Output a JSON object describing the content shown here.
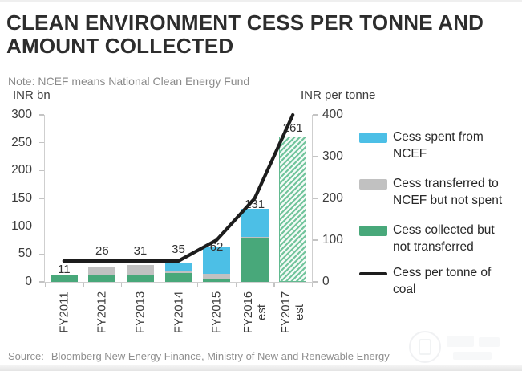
{
  "header": {
    "title": "CLEAN ENVIRONMENT CESS PER TONNE AND\nAMOUNT COLLECTED",
    "note": "Note: NCEF means National Clean Energy Fund"
  },
  "axes": {
    "left_caption": "INR bn",
    "right_caption": "INR per tonne"
  },
  "source": {
    "prefix": "Source:",
    "text": "Bloomberg New Energy Finance, Ministry of New and Renewable Energy"
  },
  "colors": {
    "spent_blue": "#4cbfe6",
    "transferred_gray": "#c1c1c1",
    "collected_green": "#48a87a",
    "hatch_green": "#72c49c",
    "line_black": "#1d1d1d",
    "axis_gray": "#cfcfcf"
  },
  "chart_data": {
    "type": "bar",
    "subtype": "stacked-bars-with-line-overlay",
    "title": "Clean environment cess per tonne and amount collected",
    "categories": [
      "FY2011",
      "FY2012",
      "FY2013",
      "FY2014",
      "FY2015",
      "FY2016 est",
      "FY2017 est"
    ],
    "bar_unit": "INR bn",
    "series": [
      {
        "name": "Cess collected but not transferred",
        "color_key": "collected_green",
        "hatched": false,
        "values": [
          11,
          13,
          13,
          16,
          4,
          78,
          0
        ]
      },
      {
        "name": "Cess transferred to NCEF but not spent",
        "color_key": "transferred_gray",
        "hatched": false,
        "values": [
          0,
          13,
          18,
          4,
          10,
          3,
          0
        ]
      },
      {
        "name": "Cess spent from NCEF",
        "color_key": "spent_blue",
        "hatched": false,
        "values": [
          0,
          0,
          0,
          15,
          48,
          50,
          0
        ]
      },
      {
        "name": "Total cess collected (estimate, hatched)",
        "color_key": "hatch_green",
        "hatched": true,
        "values": [
          0,
          0,
          0,
          0,
          0,
          0,
          261
        ]
      }
    ],
    "totals": [
      11,
      26,
      31,
      35,
      62,
      131,
      261
    ],
    "line_series": {
      "name": "Cess per tonne of coal",
      "axis": "right",
      "unit": "INR per tonne",
      "values": [
        50,
        50,
        50,
        50,
        100,
        200,
        400
      ]
    },
    "left_axis": {
      "label": "INR bn",
      "ticks": [
        0,
        50,
        100,
        150,
        200,
        250,
        300
      ],
      "max": 300
    },
    "right_axis": {
      "label": "INR per tonne",
      "ticks": [
        0,
        100,
        200,
        300,
        400
      ],
      "max": 400
    },
    "legend_position": "right",
    "grid": false,
    "legend": [
      {
        "swatch": "rect",
        "color_key": "spent_blue",
        "label": "Cess spent from\nNCEF"
      },
      {
        "swatch": "rect",
        "color_key": "transferred_gray",
        "label": "Cess transferred to\nNCEF but not spent"
      },
      {
        "swatch": "rect",
        "color_key": "collected_green",
        "label": "Cess collected but\nnot transferred"
      },
      {
        "swatch": "line",
        "color_key": "line_black",
        "label": "Cess per tonne of\ncoal"
      }
    ]
  }
}
